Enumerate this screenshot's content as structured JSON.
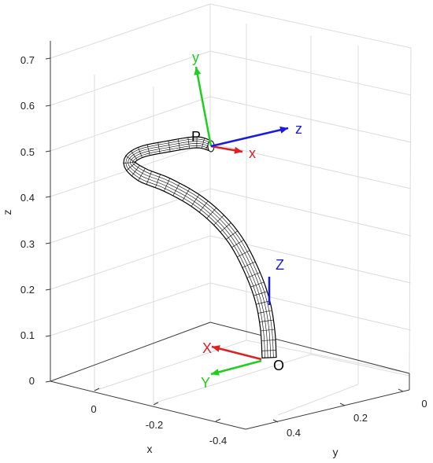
{
  "axes": {
    "z_ticks": [
      "0",
      "0.1",
      "0.2",
      "0.3",
      "0.4",
      "0.5",
      "0.6",
      "0.7"
    ],
    "x_ticks": [
      "0",
      "-0.2",
      "-0.4"
    ],
    "y_ticks": [
      "0.4",
      "0.2",
      "0"
    ],
    "x_label": "x",
    "y_label": "y",
    "z_label": "z",
    "grid": true
  },
  "world_frame": {
    "origin_label": "O",
    "x_label": "X",
    "y_label": "Y",
    "z_label": "Z"
  },
  "tip_frame": {
    "point_label": "P",
    "x_label": "x",
    "y_label": "y",
    "z_label": "z"
  },
  "colors": {
    "x_axis": "#e02020",
    "y_axis": "#1ecf1e",
    "z_axis": "#1a1ae0",
    "grid": "#dcdcdc",
    "box": "#3a3a3a",
    "tube_fill": "#ffffff",
    "tube_mesh": "#000000"
  }
}
